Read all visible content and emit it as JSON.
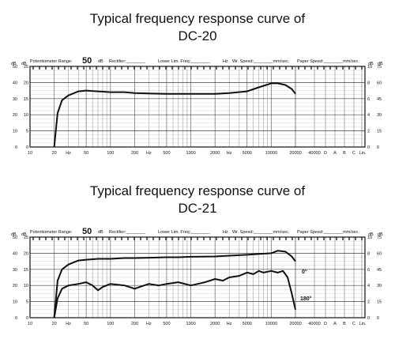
{
  "chart_data": [
    {
      "type": "line",
      "title_line1": "Typical frequency response curve of",
      "title_line2": "DC-20",
      "header": {
        "potentiometer_label": "Potentiometer Range:",
        "potentiometer_value": "50",
        "db_unit": "dB",
        "rectifier": "Rectifier:________",
        "lower_lim": "Lower Lim. Freq:________",
        "hz": "Hz",
        "wr_speed": "Wr. Speed:________mm/sec.",
        "paper_speed": "Paper Speed:________mm/sec."
      },
      "left_axis_unit_1": "dB",
      "left_axis_unit_2": "dB",
      "right_axis_unit_1": "dB",
      "right_axis_unit_2": "dB",
      "left_ticks_outer": [
        "50",
        "40",
        "30",
        "20",
        "10",
        "0"
      ],
      "left_ticks_inner": [
        "25",
        "20",
        "15",
        "10",
        "5",
        "0"
      ],
      "right_ticks_inner": [
        "10",
        "8",
        "6",
        "4",
        "2",
        "0"
      ],
      "right_ticks_outer": [
        "75",
        "60",
        "45",
        "30",
        "15",
        "0"
      ],
      "x_tick_labels": [
        "10",
        "20",
        "Hz",
        "50",
        "100",
        "200",
        "Hz",
        "500",
        "1000",
        "2000",
        "Hz",
        "5000",
        "10000",
        "20000",
        "40000",
        "D",
        "A",
        "B",
        "C",
        "Lin."
      ],
      "x_scale": "log",
      "xlim": [
        10,
        20000
      ],
      "ylim": [
        0,
        50
      ],
      "series": [
        {
          "x": [
            20,
            22,
            25,
            30,
            40,
            50,
            70,
            100,
            150,
            200,
            300,
            500,
            700,
            1000,
            2000,
            3000,
            5000,
            7000,
            10000,
            12000,
            15000,
            18000,
            20000
          ],
          "y": [
            0,
            21,
            29,
            32,
            34.5,
            35,
            34.5,
            34,
            34,
            33.5,
            33.2,
            33,
            33,
            33,
            33,
            33.5,
            34.5,
            37,
            39.5,
            39.5,
            38.5,
            36,
            33
          ]
        }
      ],
      "annotations": []
    },
    {
      "type": "line",
      "title_line1": "Typical frequency response curve of",
      "title_line2": "DC-21",
      "header": {
        "potentiometer_label": "Potentiometer Range:",
        "potentiometer_value": "50",
        "db_unit": "dB",
        "rectifier": "Rectifier:________",
        "lower_lim": "Lower Lim. Freq:________",
        "hz": "Hz",
        "wr_speed": "Wr. Speed:________mm/sec.",
        "paper_speed": "Paper Speed:________mm/sec."
      },
      "left_axis_unit_1": "dB",
      "left_axis_unit_2": "dB",
      "right_axis_unit_1": "dB",
      "right_axis_unit_2": "dB",
      "left_ticks_outer": [
        "50",
        "40",
        "30",
        "20",
        "10",
        "0"
      ],
      "left_ticks_inner": [
        "25",
        "20",
        "15",
        "10",
        "5",
        "0"
      ],
      "right_ticks_inner": [
        "10",
        "8",
        "6",
        "4",
        "2",
        "0"
      ],
      "right_ticks_outer": [
        "75",
        "60",
        "45",
        "30",
        "15",
        "0"
      ],
      "x_tick_labels": [
        "10",
        "20",
        "Hz",
        "50",
        "100",
        "200",
        "Hz",
        "500",
        "1000",
        "2000",
        "Hz",
        "5000",
        "10000",
        "20000",
        "40000",
        "D",
        "A",
        "B",
        "C",
        "Lin."
      ],
      "x_scale": "log",
      "xlim": [
        10,
        20000
      ],
      "ylim": [
        0,
        50
      ],
      "series": [
        {
          "name": "0°",
          "x": [
            20,
            22,
            25,
            30,
            40,
            50,
            70,
            100,
            150,
            200,
            300,
            500,
            700,
            1000,
            2000,
            3000,
            5000,
            7000,
            10000,
            12000,
            15000,
            18000,
            20000
          ],
          "y": [
            0,
            23,
            30,
            33,
            35.5,
            36,
            36.5,
            36.5,
            37,
            37,
            37.2,
            37.5,
            37.5,
            37.8,
            38,
            38.5,
            39,
            39.5,
            40,
            41.5,
            41,
            38,
            35
          ]
        },
        {
          "name": "180°",
          "x": [
            20,
            22,
            25,
            30,
            40,
            50,
            60,
            70,
            80,
            100,
            150,
            200,
            300,
            400,
            500,
            700,
            1000,
            1500,
            2000,
            2500,
            3000,
            4000,
            5000,
            6000,
            7000,
            8000,
            10000,
            12000,
            14000,
            16000,
            18000,
            20000
          ],
          "y": [
            0,
            12,
            18,
            20,
            21,
            22,
            20,
            17,
            19,
            21,
            20,
            18,
            21,
            20,
            21,
            22,
            20,
            22,
            24,
            23,
            25,
            26,
            28,
            27,
            29,
            28,
            29,
            28,
            29,
            25,
            15,
            5
          ]
        }
      ],
      "annotations": [
        "0°",
        "180°"
      ]
    }
  ]
}
